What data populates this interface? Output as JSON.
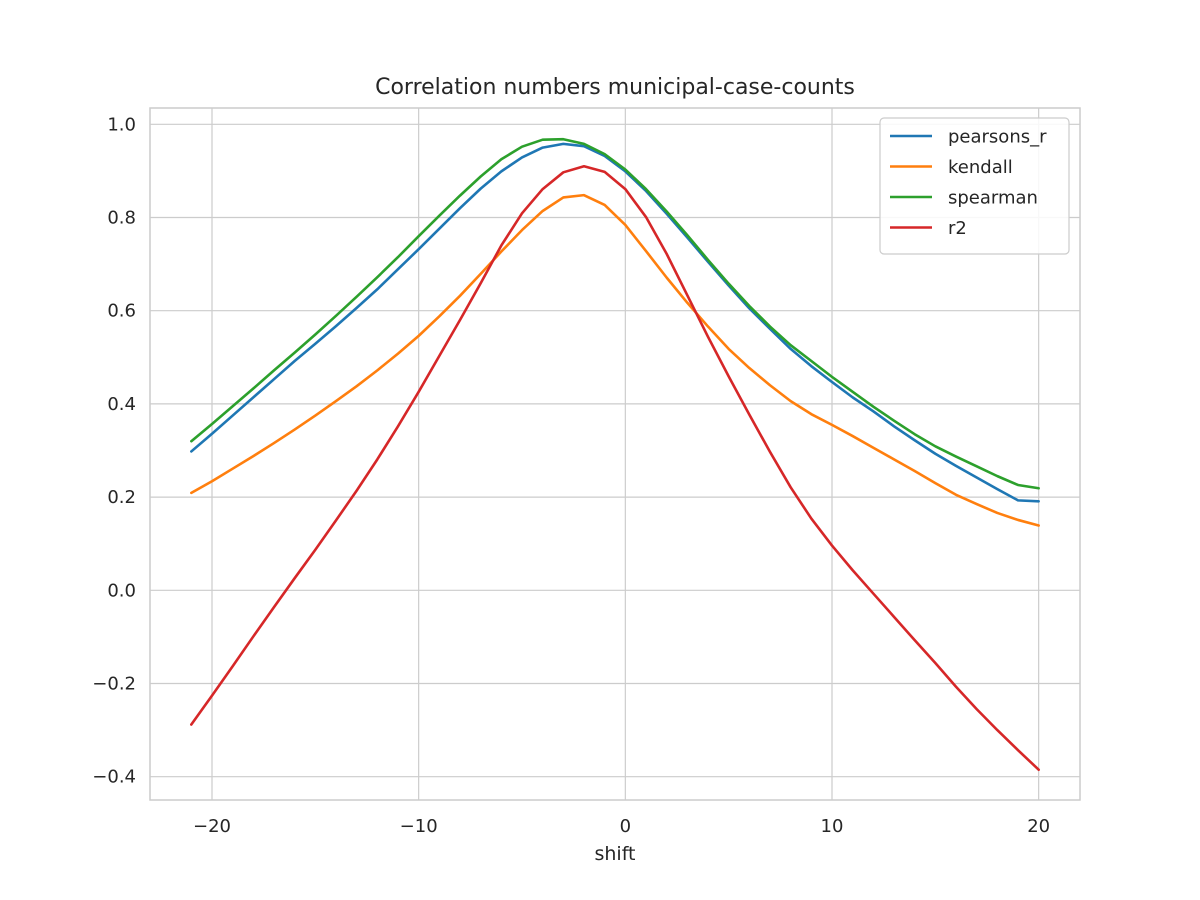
{
  "chart_data": {
    "type": "line",
    "title": "Correlation numbers municipal-case-counts",
    "xlabel": "shift",
    "ylabel": "",
    "xlim": [
      -23,
      22
    ],
    "ylim": [
      -0.45,
      1.035
    ],
    "xticks": [
      -20,
      -10,
      0,
      10,
      20
    ],
    "xtick_labels": [
      "−20",
      "−10",
      "0",
      "10",
      "20"
    ],
    "yticks": [
      -0.4,
      -0.2,
      0.0,
      0.2,
      0.4,
      0.6,
      0.8,
      1.0
    ],
    "ytick_labels": [
      "−0.4",
      "−0.2",
      "0.0",
      "0.2",
      "0.4",
      "0.6",
      "0.8",
      "1.0"
    ],
    "grid": true,
    "legend_position": "top-right",
    "x": [
      -21,
      -20,
      -19,
      -18,
      -17,
      -16,
      -15,
      -14,
      -13,
      -12,
      -11,
      -10,
      -9,
      -8,
      -7,
      -6,
      -5,
      -4,
      -3,
      -2,
      -1,
      0,
      1,
      2,
      3,
      4,
      5,
      6,
      7,
      8,
      9,
      10,
      11,
      12,
      13,
      14,
      15,
      16,
      17,
      18,
      19,
      20
    ],
    "series": [
      {
        "name": "pearsons_r",
        "color": "#1f77b4",
        "values": [
          0.298,
          0.336,
          0.375,
          0.414,
          0.453,
          0.492,
          0.529,
          0.567,
          0.606,
          0.646,
          0.689,
          0.732,
          0.776,
          0.82,
          0.862,
          0.899,
          0.929,
          0.95,
          0.958,
          0.953,
          0.932,
          0.899,
          0.857,
          0.808,
          0.757,
          0.705,
          0.654,
          0.605,
          0.561,
          0.518,
          0.481,
          0.447,
          0.414,
          0.384,
          0.352,
          0.322,
          0.293,
          0.267,
          0.242,
          0.217,
          0.193,
          0.191
        ]
      },
      {
        "name": "kendall",
        "color": "#ff7f0e",
        "values": [
          0.209,
          0.234,
          0.261,
          0.288,
          0.316,
          0.345,
          0.375,
          0.406,
          0.438,
          0.472,
          0.508,
          0.546,
          0.588,
          0.632,
          0.679,
          0.727,
          0.773,
          0.814,
          0.843,
          0.848,
          0.827,
          0.784,
          0.728,
          0.671,
          0.617,
          0.566,
          0.518,
          0.477,
          0.44,
          0.406,
          0.378,
          0.355,
          0.331,
          0.306,
          0.281,
          0.256,
          0.23,
          0.205,
          0.185,
          0.166,
          0.151,
          0.139
        ]
      },
      {
        "name": "spearman",
        "color": "#2ca02c",
        "values": [
          0.32,
          0.357,
          0.395,
          0.433,
          0.472,
          0.51,
          0.549,
          0.589,
          0.63,
          0.672,
          0.715,
          0.76,
          0.804,
          0.847,
          0.888,
          0.925,
          0.952,
          0.967,
          0.968,
          0.958,
          0.936,
          0.903,
          0.861,
          0.813,
          0.762,
          0.709,
          0.658,
          0.61,
          0.566,
          0.526,
          0.492,
          0.458,
          0.426,
          0.394,
          0.364,
          0.335,
          0.309,
          0.287,
          0.266,
          0.245,
          0.226,
          0.219
        ]
      },
      {
        "name": "r2",
        "color": "#d62728",
        "values": [
          -0.288,
          -0.226,
          -0.163,
          -0.099,
          -0.036,
          0.026,
          0.087,
          0.15,
          0.214,
          0.281,
          0.352,
          0.426,
          0.503,
          0.58,
          0.659,
          0.74,
          0.809,
          0.861,
          0.897,
          0.91,
          0.898,
          0.861,
          0.801,
          0.722,
          0.633,
          0.544,
          0.459,
          0.377,
          0.297,
          0.221,
          0.154,
          0.096,
          0.043,
          -0.007,
          -0.057,
          -0.107,
          -0.156,
          -0.207,
          -0.255,
          -0.3,
          -0.343,
          -0.385
        ]
      }
    ]
  }
}
